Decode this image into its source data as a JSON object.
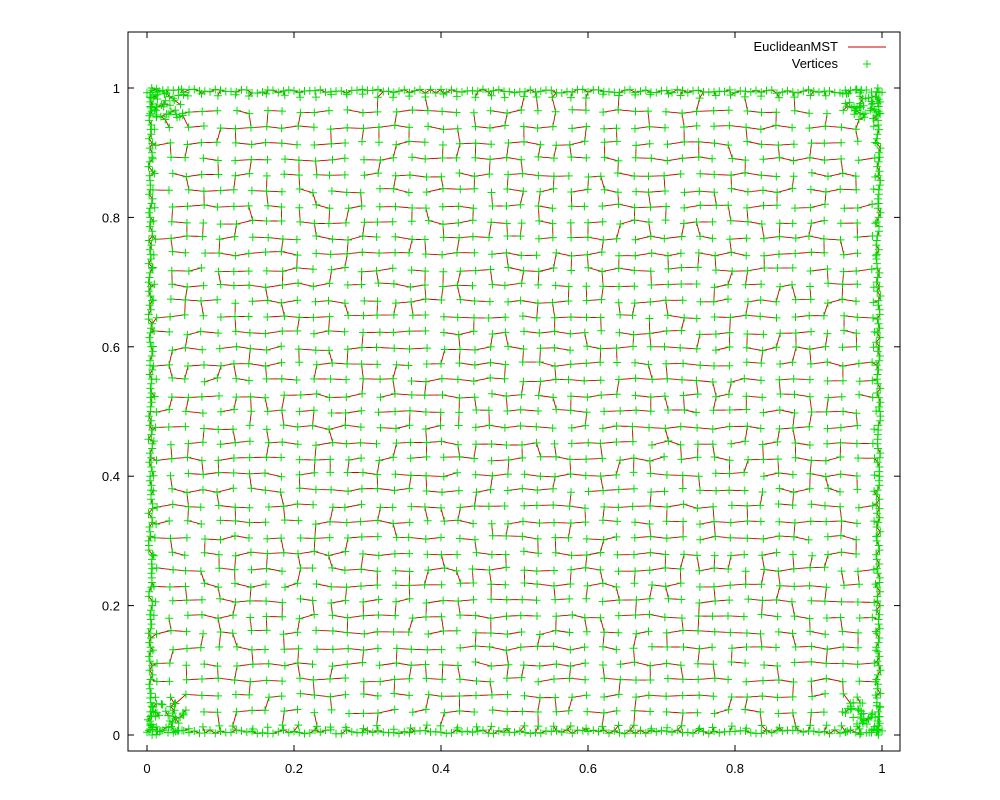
{
  "chart_data": {
    "type": "scatter",
    "title": "",
    "xlabel": "",
    "ylabel": "",
    "xlim": [
      -0.025,
      1.025
    ],
    "ylim": [
      -0.025,
      1.1
    ],
    "xticks": [
      0,
      0.2,
      0.4,
      0.6,
      0.8,
      1
    ],
    "xtick_labels": [
      "0",
      "0.2",
      "0.4",
      "0.6",
      "0.8",
      "1"
    ],
    "yticks": [
      0,
      0.2,
      0.4,
      0.6,
      0.8,
      1
    ],
    "ytick_labels": [
      "0",
      "0.2",
      "0.4",
      "0.6",
      "0.8",
      "1"
    ],
    "grid": false,
    "legend_position": "top-right",
    "series": [
      {
        "name": "EuclideanMST",
        "kind": "line",
        "color": "#cc0000"
      },
      {
        "name": "Vertices",
        "kind": "points",
        "marker": "plus",
        "color": "#00e000"
      }
    ],
    "vertex_layout": {
      "grid_columns": 46,
      "grid_rows": 41,
      "jitter_fraction": 0.28,
      "edge_density_columns": 18,
      "edge_density_rows": 16,
      "seed": 12345
    }
  }
}
